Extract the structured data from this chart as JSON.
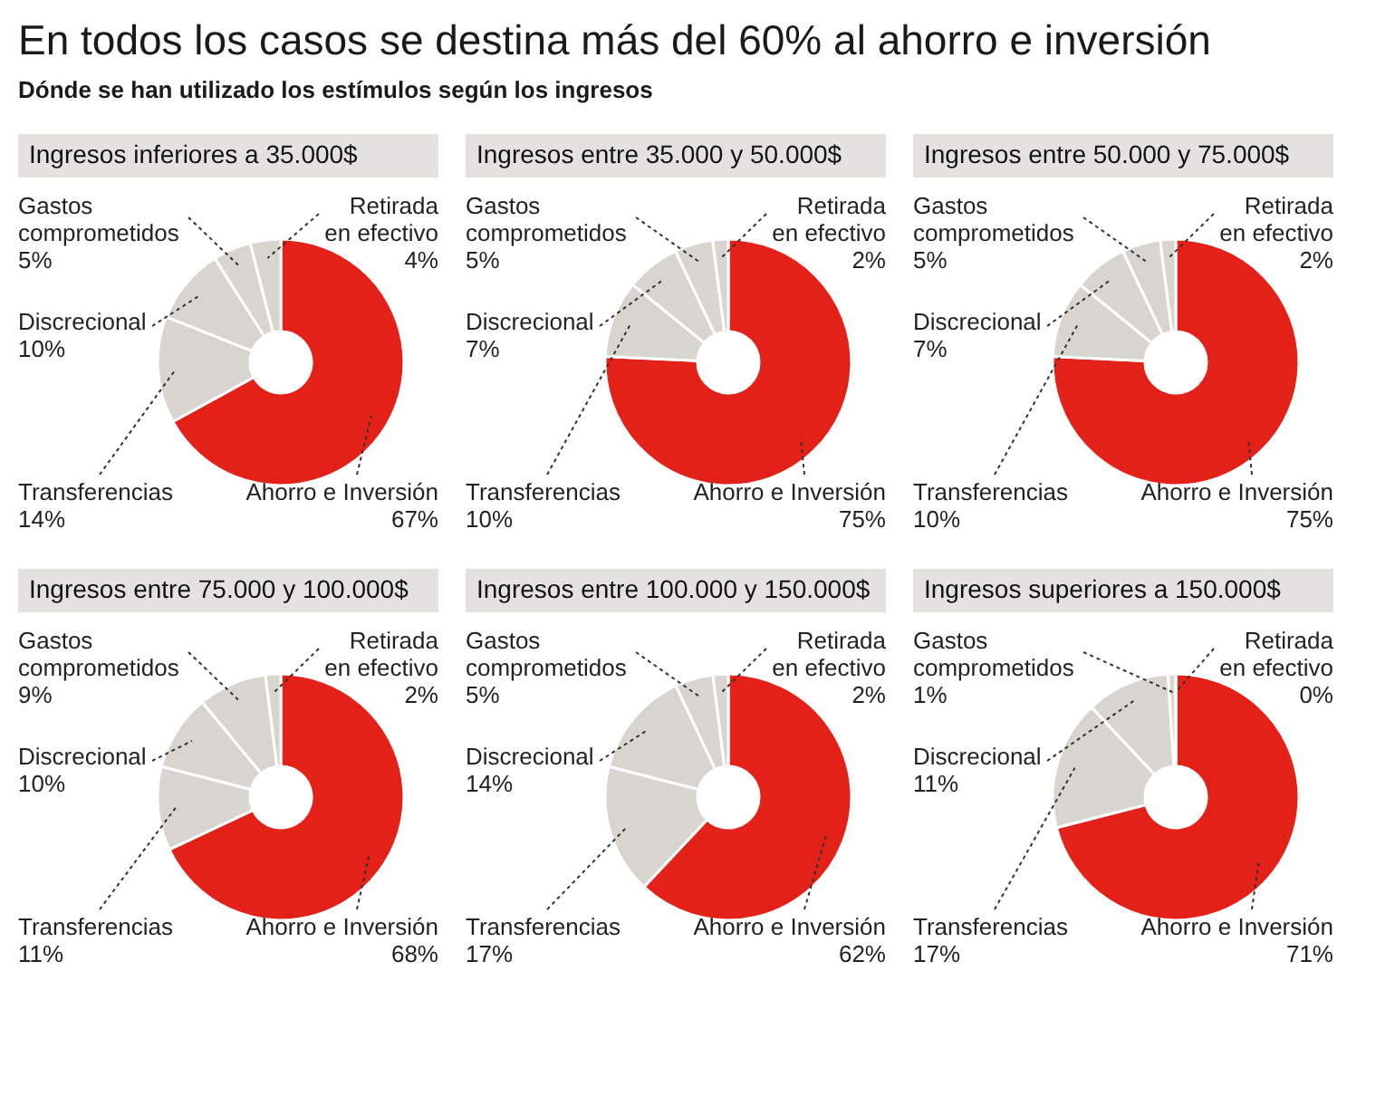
{
  "chart_data": [
    {
      "type": "other",
      "title": "En todos los casos se destina más del 60% al ahorro e inversión",
      "subtitle": "Dónde se han utilizado los estímulos según los ingresos"
    },
    {
      "type": "donut",
      "title": "Ingresos inferiores a 35.000$",
      "categories": [
        "Ahorro e Inversión",
        "Transferencias",
        "Discrecional",
        "Gastos\ncomprometidos",
        "Retirada\nen efectivo"
      ],
      "values": [
        67,
        14,
        10,
        5,
        4
      ],
      "value_labels": [
        "67%",
        "14%",
        "10%",
        "5%",
        "4%"
      ],
      "colors": [
        "#e32119",
        "#d8d5d0",
        "#d8d5d0",
        "#d8d5d0",
        "#d8d5d0"
      ]
    },
    {
      "type": "donut",
      "title": "Ingresos entre 35.000 y 50.000$",
      "categories": [
        "Ahorro e Inversión",
        "Transferencias",
        "Discrecional",
        "Gastos\ncomprometidos",
        "Retirada\nen efectivo"
      ],
      "values": [
        75,
        10,
        7,
        5,
        2
      ],
      "value_labels": [
        "75%",
        "10%",
        "7%",
        "5%",
        "2%"
      ],
      "colors": [
        "#e32119",
        "#d8d5d0",
        "#d8d5d0",
        "#d8d5d0",
        "#d8d5d0"
      ]
    },
    {
      "type": "donut",
      "title": "Ingresos entre 50.000 y 75.000$",
      "categories": [
        "Ahorro e Inversión",
        "Transferencias",
        "Discrecional",
        "Gastos\ncomprometidos",
        "Retirada\nen efectivo"
      ],
      "values": [
        75,
        10,
        7,
        5,
        2
      ],
      "value_labels": [
        "75%",
        "10%",
        "7%",
        "5%",
        "2%"
      ],
      "colors": [
        "#e32119",
        "#d8d5d0",
        "#d8d5d0",
        "#d8d5d0",
        "#d8d5d0"
      ]
    },
    {
      "type": "donut",
      "title": "Ingresos entre 75.000 y 100.000$",
      "categories": [
        "Ahorro e Inversión",
        "Transferencias",
        "Discrecional",
        "Gastos\ncomprometidos",
        "Retirada\nen efectivo"
      ],
      "values": [
        68,
        11,
        10,
        9,
        2
      ],
      "value_labels": [
        "68%",
        "11%",
        "10%",
        "9%",
        "2%"
      ],
      "colors": [
        "#e32119",
        "#d8d5d0",
        "#d8d5d0",
        "#d8d5d0",
        "#d8d5d0"
      ]
    },
    {
      "type": "donut",
      "title": "Ingresos entre 100.000 y 150.000$",
      "categories": [
        "Ahorro e Inversión",
        "Transferencias",
        "Discrecional",
        "Gastos\ncomprometidos",
        "Retirada\nen efectivo"
      ],
      "values": [
        62,
        17,
        14,
        5,
        2
      ],
      "value_labels": [
        "62%",
        "17%",
        "14%",
        "5%",
        "2%"
      ],
      "colors": [
        "#e32119",
        "#d8d5d0",
        "#d8d5d0",
        "#d8d5d0",
        "#d8d5d0"
      ]
    },
    {
      "type": "donut",
      "title": "Ingresos superiores a 150.000$",
      "categories": [
        "Ahorro e Inversión",
        "Transferencias",
        "Discrecional",
        "Gastos\ncomprometidos",
        "Retirada\nen efectivo"
      ],
      "values": [
        71,
        17,
        11,
        1,
        0
      ],
      "value_labels": [
        "71%",
        "17%",
        "11%",
        "1%",
        "0%"
      ],
      "colors": [
        "#e32119",
        "#d8d5d0",
        "#d8d5d0",
        "#d8d5d0",
        "#d8d5d0"
      ]
    }
  ]
}
